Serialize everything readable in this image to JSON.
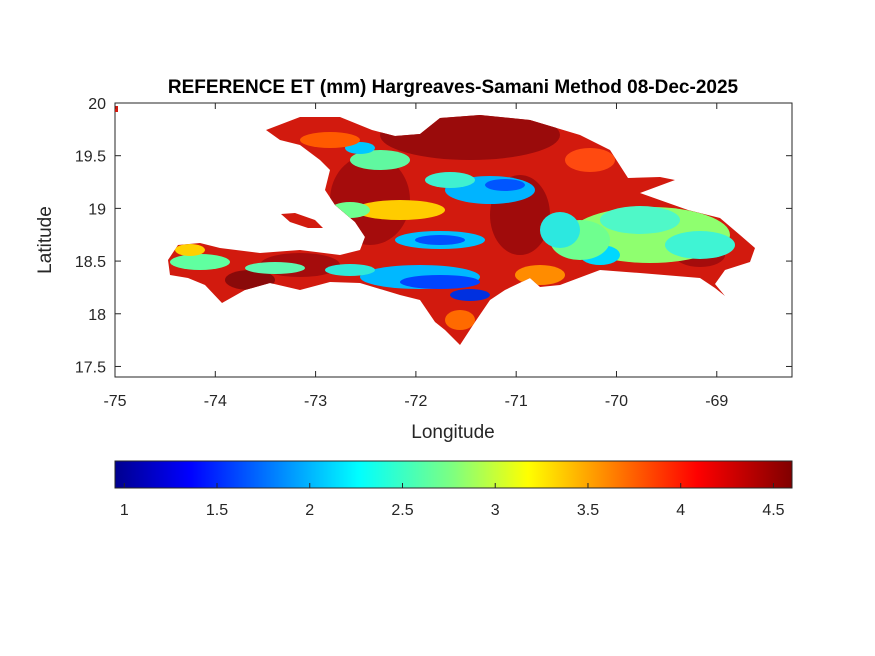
{
  "title": "REFERENCE ET (mm) Hargreaves-Samani Method  08-Dec-2025",
  "xlabel": "Longitude",
  "ylabel": "Latitude",
  "x_ticks": [
    "-75",
    "-74",
    "-73",
    "-72",
    "-71",
    "-70",
    "-69"
  ],
  "y_ticks": [
    "20",
    "19.5",
    "19",
    "18.5",
    "18",
    "17.5"
  ],
  "colorbar": {
    "ticks": [
      "1",
      "1.5",
      "2",
      "2.5",
      "3",
      "3.5",
      "4",
      "4.5"
    ],
    "min": 0.95,
    "max": 4.6,
    "colormap": "jet"
  },
  "chart_data": {
    "type": "heatmap",
    "title": "REFERENCE ET (mm) Hargreaves-Samani Method  08-Dec-2025",
    "xlabel": "Longitude",
    "ylabel": "Latitude",
    "xlim": [
      -75,
      -68.25
    ],
    "ylim": [
      17.4,
      20.0
    ],
    "x_ticks": [
      -75,
      -74,
      -73,
      -72,
      -71,
      -70,
      -69
    ],
    "y_ticks": [
      17.5,
      18,
      18.5,
      19,
      19.5,
      20
    ],
    "value_range": [
      0.95,
      4.6
    ],
    "colorbar_ticks": [
      1,
      1.5,
      2,
      2.5,
      3,
      3.5,
      4,
      4.5
    ],
    "units": "mm",
    "region": "Hispaniola (Haiti / Dominican Republic)"
  }
}
